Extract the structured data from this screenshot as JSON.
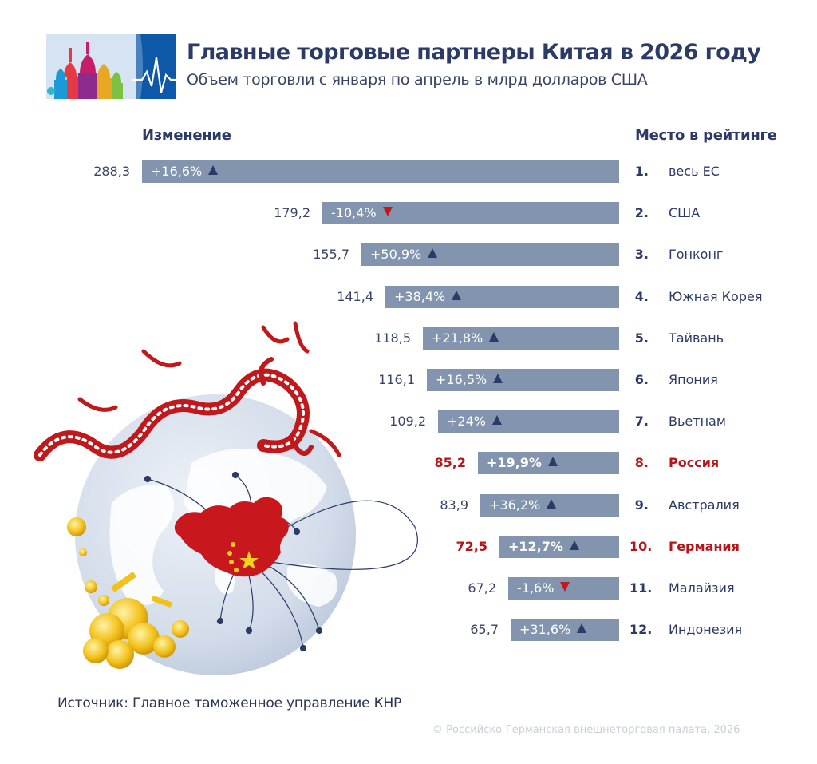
{
  "header": {
    "title": "Главные торговые партнеры Китая в 2026 году",
    "subtitle": "Объем торговли с января по апрель в млрд долларов США"
  },
  "columns": {
    "change": "Изменение",
    "rank": "Место в рейтинге"
  },
  "chart_data": {
    "type": "bar",
    "orientation": "horizontal",
    "title": "Главные торговые партнеры Китая в 2026 году",
    "subtitle": "Объем торговли с января по апрель в млрд долларов США",
    "value_axis_max": 288.3,
    "items": [
      {
        "rank": "1.",
        "country": "весь ЕС",
        "value": 288.3,
        "value_label": "288,3",
        "change": "+16,6%",
        "direction": "up",
        "highlight": false
      },
      {
        "rank": "2.",
        "country": "США",
        "value": 179.2,
        "value_label": "179,2",
        "change": "-10,4%",
        "direction": "down",
        "highlight": false
      },
      {
        "rank": "3.",
        "country": "Гонконг",
        "value": 155.7,
        "value_label": "155,7",
        "change": "+50,9%",
        "direction": "up",
        "highlight": false
      },
      {
        "rank": "4.",
        "country": "Южная Корея",
        "value": 141.4,
        "value_label": "141,4",
        "change": "+38,4%",
        "direction": "up",
        "highlight": false
      },
      {
        "rank": "5.",
        "country": "Тайвань",
        "value": 118.5,
        "value_label": "118,5",
        "change": "+21,8%",
        "direction": "up",
        "highlight": false
      },
      {
        "rank": "6.",
        "country": "Япония",
        "value": 116.1,
        "value_label": "116,1",
        "change": "+16,5%",
        "direction": "up",
        "highlight": false
      },
      {
        "rank": "7.",
        "country": "Вьетнам",
        "value": 109.2,
        "value_label": "109,2",
        "change": "+24%",
        "direction": "up",
        "highlight": false
      },
      {
        "rank": "8.",
        "country": "Россия",
        "value": 85.2,
        "value_label": "85,2",
        "change": "+19,9%",
        "direction": "up",
        "highlight": true
      },
      {
        "rank": "9.",
        "country": "Австралия",
        "value": 83.9,
        "value_label": "83,9",
        "change": "+36,2%",
        "direction": "up",
        "highlight": false
      },
      {
        "rank": "10.",
        "country": "Германия",
        "value": 72.5,
        "value_label": "72,5",
        "change": "+12,7%",
        "direction": "up",
        "highlight": true
      },
      {
        "rank": "11.",
        "country": "Малайзия",
        "value": 67.2,
        "value_label": "67,2",
        "change": "-1,6%",
        "direction": "down",
        "highlight": false
      },
      {
        "rank": "12.",
        "country": "Индонезия",
        "value": 65.7,
        "value_label": "65,7",
        "change": "+31,6%",
        "direction": "up",
        "highlight": false
      }
    ]
  },
  "colors": {
    "bar": "#8294ae",
    "highlight": "#b3171b",
    "arrow_up": "#2b3a67",
    "arrow_down": "#c0181b",
    "text_dark": "#2b3a67"
  },
  "footer": {
    "source": "Источник: Главное таможенное управление КНР",
    "copyright": "© Российско-Германская внешнеторговая палата, 2026"
  }
}
